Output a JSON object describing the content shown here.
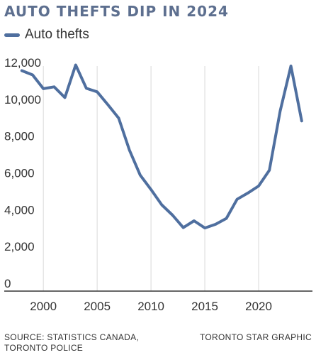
{
  "chart_data": {
    "type": "line",
    "title": "AUTO THEFTS DIP IN 2024",
    "legend_position": "top-left",
    "grid": "vertical",
    "series": [
      {
        "name": "Auto thefts",
        "color": "#4f6f9f",
        "points": [
          {
            "x": 1998,
            "y": 11980
          },
          {
            "x": 1999,
            "y": 11750
          },
          {
            "x": 2000,
            "y": 11000
          },
          {
            "x": 2001,
            "y": 11100
          },
          {
            "x": 2002,
            "y": 10520
          },
          {
            "x": 2003,
            "y": 12290
          },
          {
            "x": 2004,
            "y": 11020
          },
          {
            "x": 2005,
            "y": 10830
          },
          {
            "x": 2006,
            "y": 10130
          },
          {
            "x": 2007,
            "y": 9400
          },
          {
            "x": 2008,
            "y": 7660
          },
          {
            "x": 2009,
            "y": 6300
          },
          {
            "x": 2010,
            "y": 5520
          },
          {
            "x": 2011,
            "y": 4690
          },
          {
            "x": 2012,
            "y": 4130
          },
          {
            "x": 2013,
            "y": 3450
          },
          {
            "x": 2014,
            "y": 3820
          },
          {
            "x": 2015,
            "y": 3430
          },
          {
            "x": 2016,
            "y": 3630
          },
          {
            "x": 2017,
            "y": 3950
          },
          {
            "x": 2018,
            "y": 4990
          },
          {
            "x": 2019,
            "y": 5330
          },
          {
            "x": 2020,
            "y": 5710
          },
          {
            "x": 2021,
            "y": 6570
          },
          {
            "x": 2022,
            "y": 9780
          },
          {
            "x": 2023,
            "y": 12230
          },
          {
            "x": 2024,
            "y": 9250
          }
        ]
      }
    ],
    "xlim": [
      1996.5,
      2025
    ],
    "ylim": [
      0,
      12000
    ],
    "x_ticks": [
      2000,
      2005,
      2010,
      2015,
      2020
    ],
    "x_tick_labels": [
      "2000",
      "2005",
      "2010",
      "2015",
      "2020"
    ],
    "y_ticks": [
      0,
      2000,
      4000,
      6000,
      8000,
      10000,
      12000
    ],
    "y_tick_labels": [
      "0",
      "2,000",
      "4,000",
      "6,000",
      "8,000",
      "10,000",
      "12,000"
    ]
  },
  "footer": {
    "source": "SOURCE: STATISTICS CANADA, TORONTO POLICE",
    "credit": "TORONTO STAR GRAPHIC"
  },
  "colors": {
    "title": "#5d6f8f",
    "line": "#4f6f9f",
    "grid": "#d9d9d9",
    "axis": "#333333"
  }
}
